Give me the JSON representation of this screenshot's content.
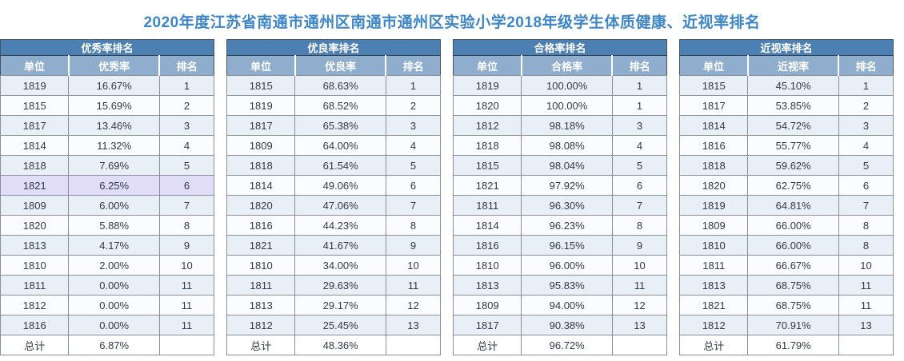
{
  "page": {
    "title": "2020年度江苏省南通市通州区南通市通州区实验小学2018年级学生体质健康、近视率排名"
  },
  "colors": {
    "page_title_text": "#3e86c6",
    "table_title_bg": "#4d80b2",
    "column_header_bg": "#8fadcd",
    "row_odd_bg": "#e9eff7",
    "row_even_bg": "#fafcff",
    "row_highlight_bg": "#e1dcf8",
    "cell_border": "#8a8f98"
  },
  "total_label": "总计",
  "tables": [
    {
      "key": "excellent-rate",
      "title": "优秀率排名",
      "columns": [
        "单位",
        "优秀率",
        "排名"
      ],
      "rows": [
        [
          "1819",
          "16.67%",
          "1"
        ],
        [
          "1815",
          "15.69%",
          "2"
        ],
        [
          "1817",
          "13.46%",
          "3"
        ],
        [
          "1814",
          "11.32%",
          "4"
        ],
        [
          "1818",
          "7.69%",
          "5"
        ],
        [
          "1821",
          "6.25%",
          "6"
        ],
        [
          "1809",
          "6.00%",
          "7"
        ],
        [
          "1820",
          "5.88%",
          "8"
        ],
        [
          "1813",
          "4.17%",
          "9"
        ],
        [
          "1810",
          "2.00%",
          "10"
        ],
        [
          "1811",
          "0.00%",
          "11"
        ],
        [
          "1812",
          "0.00%",
          "11"
        ],
        [
          "1816",
          "0.00%",
          "11"
        ]
      ],
      "total_value": "6.87%",
      "highlight_row_index": 5
    },
    {
      "key": "good-rate",
      "title": "优良率排名",
      "columns": [
        "单位",
        "优良率",
        "排名"
      ],
      "rows": [
        [
          "1815",
          "68.63%",
          "1"
        ],
        [
          "1819",
          "68.52%",
          "2"
        ],
        [
          "1817",
          "65.38%",
          "3"
        ],
        [
          "1809",
          "64.00%",
          "4"
        ],
        [
          "1818",
          "61.54%",
          "5"
        ],
        [
          "1814",
          "49.06%",
          "6"
        ],
        [
          "1820",
          "47.06%",
          "7"
        ],
        [
          "1816",
          "44.23%",
          "8"
        ],
        [
          "1821",
          "41.67%",
          "9"
        ],
        [
          "1810",
          "34.00%",
          "10"
        ],
        [
          "1811",
          "29.63%",
          "11"
        ],
        [
          "1813",
          "29.17%",
          "12"
        ],
        [
          "1812",
          "25.45%",
          "13"
        ]
      ],
      "total_value": "48.36%",
      "highlight_row_index": null
    },
    {
      "key": "pass-rate",
      "title": "合格率排名",
      "columns": [
        "单位",
        "合格率",
        "排名"
      ],
      "rows": [
        [
          "1819",
          "100.00%",
          "1"
        ],
        [
          "1820",
          "100.00%",
          "1"
        ],
        [
          "1812",
          "98.18%",
          "3"
        ],
        [
          "1818",
          "98.08%",
          "4"
        ],
        [
          "1815",
          "98.04%",
          "5"
        ],
        [
          "1821",
          "97.92%",
          "6"
        ],
        [
          "1811",
          "96.30%",
          "7"
        ],
        [
          "1814",
          "96.23%",
          "8"
        ],
        [
          "1816",
          "96.15%",
          "9"
        ],
        [
          "1810",
          "96.00%",
          "10"
        ],
        [
          "1813",
          "95.83%",
          "11"
        ],
        [
          "1809",
          "94.00%",
          "12"
        ],
        [
          "1817",
          "90.38%",
          "13"
        ]
      ],
      "total_value": "96.72%",
      "highlight_row_index": null
    },
    {
      "key": "myopia-rate",
      "title": "近视率排名",
      "columns": [
        "单位",
        "近视率",
        "排名"
      ],
      "rows": [
        [
          "1815",
          "45.10%",
          "1"
        ],
        [
          "1817",
          "53.85%",
          "2"
        ],
        [
          "1814",
          "54.72%",
          "3"
        ],
        [
          "1816",
          "55.77%",
          "4"
        ],
        [
          "1818",
          "59.62%",
          "5"
        ],
        [
          "1820",
          "62.75%",
          "6"
        ],
        [
          "1819",
          "64.81%",
          "7"
        ],
        [
          "1809",
          "66.00%",
          "8"
        ],
        [
          "1810",
          "66.00%",
          "8"
        ],
        [
          "1811",
          "66.67%",
          "10"
        ],
        [
          "1813",
          "68.75%",
          "11"
        ],
        [
          "1821",
          "68.75%",
          "11"
        ],
        [
          "1812",
          "70.91%",
          "13"
        ]
      ],
      "total_value": "61.79%",
      "highlight_row_index": null
    }
  ]
}
